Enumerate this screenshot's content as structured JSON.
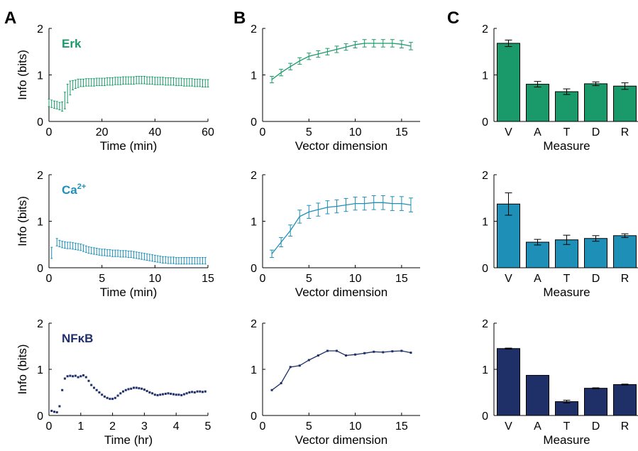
{
  "panel_letters": [
    "A",
    "B",
    "C"
  ],
  "colors": {
    "erk": "#1a9a6a",
    "ca": "#1e8fb6",
    "nfkb": "#1f3068"
  },
  "chart_data": [
    {
      "type": "line",
      "panel": "A",
      "row": 0,
      "style": "errorbar",
      "label": "Erk",
      "label_sup": "",
      "xlabel": "Time (min)",
      "ylabel": "Info (bits)",
      "xlim": [
        0,
        60
      ],
      "ylim": [
        0,
        2
      ],
      "xticks": [
        0,
        20,
        40,
        60
      ],
      "yticks": [
        0,
        1,
        2
      ],
      "series": [
        {
          "x": [
            0,
            1,
            2,
            3,
            4,
            5,
            6,
            7,
            8,
            9,
            10,
            11,
            12,
            13,
            14,
            15,
            16,
            17,
            18,
            19,
            20,
            21,
            22,
            23,
            24,
            25,
            26,
            27,
            28,
            29,
            30,
            31,
            32,
            33,
            34,
            35,
            36,
            37,
            38,
            39,
            40,
            41,
            42,
            43,
            44,
            45,
            46,
            47,
            48,
            49,
            50,
            51,
            52,
            53,
            54,
            55,
            56,
            57,
            58,
            59,
            60
          ],
          "y": [
            0.4,
            0.38,
            0.36,
            0.35,
            0.33,
            0.32,
            0.45,
            0.6,
            0.72,
            0.78,
            0.8,
            0.82,
            0.83,
            0.83,
            0.84,
            0.84,
            0.84,
            0.84,
            0.85,
            0.85,
            0.85,
            0.85,
            0.86,
            0.86,
            0.86,
            0.87,
            0.87,
            0.87,
            0.88,
            0.88,
            0.88,
            0.88,
            0.88,
            0.89,
            0.89,
            0.89,
            0.89,
            0.88,
            0.88,
            0.88,
            0.87,
            0.87,
            0.87,
            0.87,
            0.86,
            0.86,
            0.86,
            0.86,
            0.85,
            0.85,
            0.85,
            0.84,
            0.84,
            0.84,
            0.84,
            0.83,
            0.83,
            0.83,
            0.82,
            0.82,
            0.82
          ],
          "err": [
            0.08,
            0.08,
            0.08,
            0.08,
            0.08,
            0.1,
            0.18,
            0.2,
            0.15,
            0.1,
            0.09,
            0.09,
            0.08,
            0.08,
            0.08,
            0.08,
            0.08,
            0.08,
            0.08,
            0.08,
            0.08,
            0.08,
            0.08,
            0.08,
            0.08,
            0.08,
            0.08,
            0.08,
            0.08,
            0.08,
            0.08,
            0.08,
            0.08,
            0.08,
            0.08,
            0.08,
            0.08,
            0.08,
            0.08,
            0.08,
            0.08,
            0.08,
            0.08,
            0.08,
            0.08,
            0.08,
            0.08,
            0.08,
            0.08,
            0.08,
            0.08,
            0.08,
            0.08,
            0.08,
            0.08,
            0.08,
            0.08,
            0.08,
            0.08,
            0.08,
            0.08
          ]
        }
      ]
    },
    {
      "type": "line",
      "panel": "B",
      "row": 0,
      "style": "line-errorbar",
      "xlabel": "Vector dimension",
      "ylabel": "",
      "xlim": [
        0,
        17
      ],
      "ylim": [
        0,
        2
      ],
      "xticks": [
        0,
        5,
        10,
        15
      ],
      "yticks": [
        0,
        1,
        2
      ],
      "series": [
        {
          "x": [
            1,
            2,
            3,
            4,
            5,
            6,
            7,
            8,
            9,
            10,
            11,
            12,
            13,
            14,
            15,
            16
          ],
          "y": [
            0.9,
            1.05,
            1.18,
            1.3,
            1.4,
            1.45,
            1.5,
            1.55,
            1.6,
            1.65,
            1.68,
            1.68,
            1.68,
            1.68,
            1.66,
            1.62
          ],
          "err": [
            0.07,
            0.07,
            0.07,
            0.07,
            0.07,
            0.07,
            0.07,
            0.07,
            0.07,
            0.07,
            0.08,
            0.08,
            0.08,
            0.08,
            0.08,
            0.08
          ]
        }
      ]
    },
    {
      "type": "bar",
      "panel": "C",
      "row": 0,
      "xlabel": "Measure",
      "ylabel": "",
      "ylim": [
        0,
        2
      ],
      "yticks": [
        0,
        1,
        2
      ],
      "categories": [
        "V",
        "A",
        "T",
        "D",
        "R"
      ],
      "values": [
        1.68,
        0.8,
        0.64,
        0.81,
        0.76
      ],
      "err": [
        0.07,
        0.06,
        0.06,
        0.04,
        0.07
      ]
    },
    {
      "type": "line",
      "panel": "A",
      "row": 1,
      "style": "errorbar",
      "label": "Ca",
      "label_sup": "2+",
      "xlabel": "Time (min)",
      "ylabel": "Info (bits)",
      "xlim": [
        0,
        15
      ],
      "ylim": [
        0,
        2
      ],
      "xticks": [
        0,
        5,
        10,
        15
      ],
      "yticks": [
        0,
        1,
        2
      ],
      "series": [
        {
          "x": [
            0.25,
            0.75,
            1.0,
            1.25,
            1.5,
            1.75,
            2.0,
            2.25,
            2.5,
            2.75,
            3.0,
            3.25,
            3.5,
            3.75,
            4.0,
            4.25,
            4.5,
            4.75,
            5.0,
            5.25,
            5.5,
            5.75,
            6.0,
            6.25,
            6.5,
            6.75,
            7.0,
            7.25,
            7.5,
            7.75,
            8.0,
            8.25,
            8.5,
            8.75,
            9.0,
            9.25,
            9.5,
            9.75,
            10.0,
            10.25,
            10.5,
            10.75,
            11.0,
            11.25,
            11.5,
            11.75,
            12.0,
            12.25,
            12.5,
            12.75,
            13.0,
            13.25,
            13.5,
            13.75,
            14.0,
            14.25,
            14.5,
            14.75
          ],
          "y": [
            0.32,
            0.55,
            0.52,
            0.5,
            0.49,
            0.48,
            0.48,
            0.47,
            0.46,
            0.45,
            0.44,
            0.42,
            0.4,
            0.38,
            0.37,
            0.36,
            0.35,
            0.34,
            0.33,
            0.33,
            0.32,
            0.32,
            0.31,
            0.31,
            0.31,
            0.3,
            0.3,
            0.3,
            0.29,
            0.29,
            0.28,
            0.27,
            0.26,
            0.25,
            0.24,
            0.23,
            0.22,
            0.21,
            0.2,
            0.19,
            0.18,
            0.17,
            0.17,
            0.16,
            0.16,
            0.16,
            0.15,
            0.15,
            0.15,
            0.15,
            0.15,
            0.15,
            0.15,
            0.15,
            0.15,
            0.15,
            0.15,
            0.15
          ],
          "err": [
            0.12,
            0.08,
            0.07,
            0.07,
            0.07,
            0.07,
            0.07,
            0.07,
            0.07,
            0.07,
            0.07,
            0.07,
            0.07,
            0.07,
            0.07,
            0.07,
            0.07,
            0.07,
            0.07,
            0.07,
            0.07,
            0.07,
            0.07,
            0.07,
            0.07,
            0.07,
            0.07,
            0.07,
            0.07,
            0.07,
            0.07,
            0.07,
            0.07,
            0.07,
            0.07,
            0.07,
            0.07,
            0.07,
            0.07,
            0.07,
            0.07,
            0.07,
            0.07,
            0.07,
            0.07,
            0.07,
            0.07,
            0.07,
            0.07,
            0.07,
            0.07,
            0.07,
            0.07,
            0.07,
            0.07,
            0.07,
            0.07,
            0.07
          ]
        }
      ]
    },
    {
      "type": "line",
      "panel": "B",
      "row": 1,
      "style": "line-errorbar",
      "xlabel": "Vector dimension",
      "ylabel": "",
      "xlim": [
        0,
        17
      ],
      "ylim": [
        0,
        2
      ],
      "xticks": [
        0,
        5,
        10,
        15
      ],
      "yticks": [
        0,
        1,
        2
      ],
      "series": [
        {
          "x": [
            1,
            2,
            3,
            4,
            5,
            6,
            7,
            8,
            9,
            10,
            11,
            12,
            13,
            14,
            15,
            16
          ],
          "y": [
            0.3,
            0.55,
            0.8,
            1.1,
            1.2,
            1.25,
            1.3,
            1.32,
            1.35,
            1.38,
            1.38,
            1.4,
            1.4,
            1.38,
            1.38,
            1.35
          ],
          "err": [
            0.08,
            0.1,
            0.12,
            0.14,
            0.14,
            0.14,
            0.14,
            0.14,
            0.14,
            0.14,
            0.14,
            0.15,
            0.15,
            0.15,
            0.15,
            0.15
          ]
        }
      ]
    },
    {
      "type": "bar",
      "panel": "C",
      "row": 1,
      "xlabel": "Measure",
      "ylabel": "",
      "ylim": [
        0,
        2
      ],
      "yticks": [
        0,
        1,
        2
      ],
      "categories": [
        "V",
        "A",
        "T",
        "D",
        "R"
      ],
      "values": [
        1.37,
        0.55,
        0.6,
        0.63,
        0.69
      ],
      "err": [
        0.24,
        0.06,
        0.1,
        0.06,
        0.04
      ]
    },
    {
      "type": "scatter",
      "panel": "A",
      "row": 2,
      "style": "points",
      "label": "NFκB",
      "label_sup": "",
      "xlabel": "Time (hr)",
      "ylabel": "Info (bits)",
      "xlim": [
        0,
        5
      ],
      "ylim": [
        0,
        2
      ],
      "xticks": [
        0,
        1,
        2,
        3,
        4,
        5
      ],
      "yticks": [
        0,
        1,
        2
      ],
      "series": [
        {
          "x": [
            0.083,
            0.167,
            0.25,
            0.333,
            0.417,
            0.5,
            0.583,
            0.667,
            0.75,
            0.833,
            0.917,
            1.0,
            1.083,
            1.167,
            1.25,
            1.333,
            1.417,
            1.5,
            1.583,
            1.667,
            1.75,
            1.833,
            1.917,
            2.0,
            2.083,
            2.167,
            2.25,
            2.333,
            2.417,
            2.5,
            2.583,
            2.667,
            2.75,
            2.833,
            2.917,
            3.0,
            3.083,
            3.167,
            3.25,
            3.333,
            3.417,
            3.5,
            3.583,
            3.667,
            3.75,
            3.833,
            3.917,
            4.0,
            4.083,
            4.167,
            4.25,
            4.333,
            4.417,
            4.5,
            4.583,
            4.667,
            4.75,
            4.833,
            4.917
          ],
          "y": [
            0.1,
            0.08,
            0.07,
            0.2,
            0.55,
            0.8,
            0.85,
            0.86,
            0.85,
            0.86,
            0.83,
            0.85,
            0.87,
            0.83,
            0.75,
            0.66,
            0.6,
            0.55,
            0.5,
            0.45,
            0.41,
            0.38,
            0.36,
            0.36,
            0.38,
            0.43,
            0.48,
            0.52,
            0.55,
            0.57,
            0.58,
            0.6,
            0.6,
            0.59,
            0.58,
            0.56,
            0.53,
            0.5,
            0.48,
            0.45,
            0.44,
            0.45,
            0.46,
            0.47,
            0.48,
            0.47,
            0.46,
            0.45,
            0.45,
            0.44,
            0.46,
            0.48,
            0.5,
            0.51,
            0.5,
            0.52,
            0.52,
            0.51,
            0.52
          ]
        }
      ]
    },
    {
      "type": "line",
      "panel": "B",
      "row": 2,
      "style": "line-points",
      "xlabel": "Vector dimension",
      "ylabel": "",
      "xlim": [
        0,
        17
      ],
      "ylim": [
        0,
        2
      ],
      "xticks": [
        0,
        5,
        10,
        15
      ],
      "yticks": [
        0,
        1,
        2
      ],
      "series": [
        {
          "x": [
            1,
            2,
            3,
            4,
            5,
            6,
            7,
            8,
            9,
            10,
            11,
            12,
            13,
            14,
            15,
            16
          ],
          "y": [
            0.55,
            0.7,
            1.05,
            1.08,
            1.2,
            1.3,
            1.4,
            1.4,
            1.3,
            1.32,
            1.35,
            1.38,
            1.37,
            1.39,
            1.4,
            1.36
          ]
        }
      ]
    },
    {
      "type": "bar",
      "panel": "C",
      "row": 2,
      "xlabel": "Measure",
      "ylabel": "",
      "ylim": [
        0,
        2
      ],
      "yticks": [
        0,
        1,
        2
      ],
      "categories": [
        "V",
        "A",
        "T",
        "D",
        "R"
      ],
      "values": [
        1.45,
        0.87,
        0.3,
        0.59,
        0.67
      ],
      "err": [
        0.01,
        0.0,
        0.03,
        0.01,
        0.01
      ]
    }
  ]
}
